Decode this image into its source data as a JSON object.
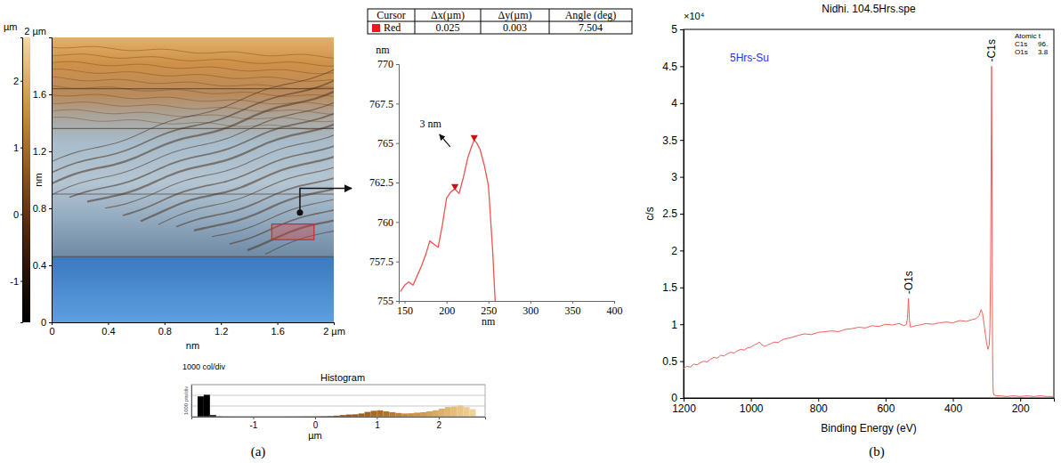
{
  "panel_labels": [
    "(a)",
    "(b)"
  ],
  "table": {
    "columns": [
      "Cursor",
      "Δx(µm)",
      "Δy(µm)",
      "Angle (deg)"
    ],
    "rows": [
      {
        "color": "#e8191e",
        "cells": [
          "Red",
          0.025,
          0.003,
          7.504
        ]
      }
    ]
  },
  "chart_data": [
    {
      "type": "image",
      "xlabel": "nm",
      "ylabel": "nm",
      "xlim": [
        0,
        2
      ],
      "ylim": [
        0,
        2
      ],
      "xticks": [
        0,
        0.4,
        0.8,
        1.2,
        1.6,
        {
          "value": 2,
          "label": "2 µm"
        }
      ],
      "yticks": [
        0,
        0.4,
        0.8,
        1.2,
        1.6,
        {
          "value": 2,
          "label": "2 µm"
        }
      ],
      "colorbar": {
        "label": "µm",
        "range": [
          -1.62,
          2.65
        ],
        "ticks": [
          -1,
          0,
          1,
          2
        ]
      }
    },
    {
      "type": "line",
      "xlabel": "nm",
      "ylabel": "nm",
      "xlim": [
        143,
        400
      ],
      "ylim": [
        755,
        770
      ],
      "xticks": [
        150,
        200,
        250,
        300,
        350,
        400
      ],
      "yticks": [
        755,
        757.5,
        760,
        762.5,
        765,
        767.5,
        770
      ],
      "color": "#ef5350",
      "x": [
        145,
        150,
        155,
        160,
        165,
        170,
        175,
        180,
        185,
        190,
        195,
        200,
        205,
        210,
        215,
        220,
        225,
        230,
        233,
        236,
        240,
        245,
        250,
        255,
        258
      ],
      "values": [
        755.6,
        756.0,
        756.2,
        756.0,
        756.6,
        757.2,
        757.9,
        758.8,
        758.6,
        758.4,
        759.8,
        761.5,
        761.9,
        762.1,
        761.8,
        762.8,
        764.0,
        764.8,
        765.2,
        765.0,
        764.6,
        763.6,
        762.3,
        758.2,
        755.0
      ],
      "markers": {
        "x": [
          210,
          233
        ],
        "y": [
          762.1,
          765.2
        ]
      },
      "annotations": [
        {
          "text": "3 nm",
          "x": 181,
          "y": 766
        }
      ]
    },
    {
      "type": "histogram",
      "title": "Histogram",
      "xlabel": "µm",
      "ylabel": "1000 pts/div",
      "annotations": [
        {
          "text": "1000 col/div"
        }
      ],
      "xlim": [
        -2,
        2.75
      ],
      "ylim": [
        0,
        3000
      ],
      "xticks": [
        -1,
        0,
        1,
        2
      ],
      "yticks": [
        0,
        1000,
        2000,
        3000
      ],
      "grid": true,
      "tick_labels": "x",
      "bins": [
        -1.9,
        -1.8,
        -1.7,
        -1.6,
        -1.5,
        -1.4,
        -1.3,
        -1.2,
        -1.1,
        -1.0,
        -0.9,
        -0.8,
        -0.7,
        -0.6,
        -0.5,
        -0.4,
        -0.3,
        -0.2,
        -0.1,
        0,
        0.1,
        0.2,
        0.3,
        0.4,
        0.5,
        0.6,
        0.7,
        0.8,
        0.9,
        1.0,
        1.1,
        1.2,
        1.3,
        1.4,
        1.5,
        1.6,
        1.7,
        1.8,
        1.9,
        2.0,
        2.1,
        2.2,
        2.3,
        2.4,
        2.5,
        2.6
      ],
      "values": [
        1900,
        2050,
        150,
        20,
        10,
        5,
        5,
        5,
        5,
        5,
        5,
        5,
        5,
        5,
        10,
        10,
        15,
        20,
        25,
        30,
        40,
        60,
        100,
        150,
        200,
        220,
        300,
        450,
        550,
        600,
        500,
        420,
        350,
        300,
        320,
        380,
        420,
        500,
        600,
        750,
        900,
        950,
        1050,
        900,
        700
      ]
    },
    {
      "type": "line",
      "title": "Nidhi. 104.5Hrs.spe",
      "subtitle": "5Hrs-Su",
      "xlabel": "Binding Energy (eV)",
      "ylabel": "c/s",
      "ylabel_multiplier": "×10⁴",
      "xlim": [
        1200,
        100
      ],
      "ylim": [
        0,
        5
      ],
      "xticks": [
        1200,
        1000,
        800,
        600,
        400,
        200
      ],
      "yticks": [
        0,
        0.5,
        1,
        1.5,
        2,
        2.5,
        3,
        3.5,
        4,
        4.5,
        5
      ],
      "color": "#f0605a",
      "x": [
        1200,
        1190,
        1180,
        1170,
        1160,
        1150,
        1140,
        1130,
        1120,
        1110,
        1100,
        1090,
        1080,
        1070,
        1060,
        1050,
        1040,
        1030,
        1020,
        1010,
        1000,
        990,
        980,
        975,
        970,
        960,
        950,
        940,
        930,
        920,
        910,
        900,
        880,
        860,
        840,
        820,
        800,
        780,
        760,
        740,
        720,
        700,
        680,
        660,
        640,
        620,
        600,
        580,
        560,
        545,
        538,
        535,
        532,
        529,
        526,
        520,
        500,
        480,
        460,
        440,
        420,
        400,
        380,
        360,
        345,
        330,
        322,
        316,
        312,
        306,
        300,
        296,
        292,
        290,
        288,
        286,
        285,
        284,
        283,
        282,
        281,
        280,
        278,
        270,
        260,
        240,
        220,
        200,
        180,
        160,
        140,
        120,
        100
      ],
      "values": [
        0.4,
        0.43,
        0.42,
        0.46,
        0.45,
        0.48,
        0.5,
        0.49,
        0.53,
        0.55,
        0.54,
        0.58,
        0.57,
        0.6,
        0.62,
        0.61,
        0.64,
        0.66,
        0.65,
        0.68,
        0.69,
        0.72,
        0.74,
        0.76,
        0.73,
        0.7,
        0.72,
        0.74,
        0.76,
        0.75,
        0.78,
        0.8,
        0.82,
        0.85,
        0.87,
        0.86,
        0.89,
        0.9,
        0.91,
        0.9,
        0.93,
        0.94,
        0.96,
        0.95,
        0.98,
        0.97,
        1.0,
        0.99,
        1.01,
        0.98,
        1.0,
        1.08,
        1.35,
        1.05,
        0.96,
        0.97,
        0.99,
        1.01,
        1.0,
        1.02,
        1.03,
        1.02,
        1.05,
        1.04,
        1.06,
        1.08,
        1.12,
        1.2,
        1.15,
        0.95,
        0.75,
        0.66,
        0.72,
        0.95,
        1.8,
        3.6,
        4.5,
        3.4,
        1.6,
        0.6,
        0.2,
        0.08,
        0.04,
        0.03,
        0.03,
        0.02,
        0.03,
        0.02,
        0.03,
        0.02,
        0.03,
        0.02,
        0.02
      ],
      "annotations": [
        {
          "text": "-C1s",
          "x": 285,
          "y": 4.5
        },
        {
          "text": "-O1s",
          "x": 532,
          "y": 1.35
        }
      ],
      "inset_table": {
        "header": "Atomic t",
        "rows": [
          [
            "C1s",
            "96."
          ],
          [
            "O1s",
            "3.8"
          ]
        ]
      }
    }
  ]
}
